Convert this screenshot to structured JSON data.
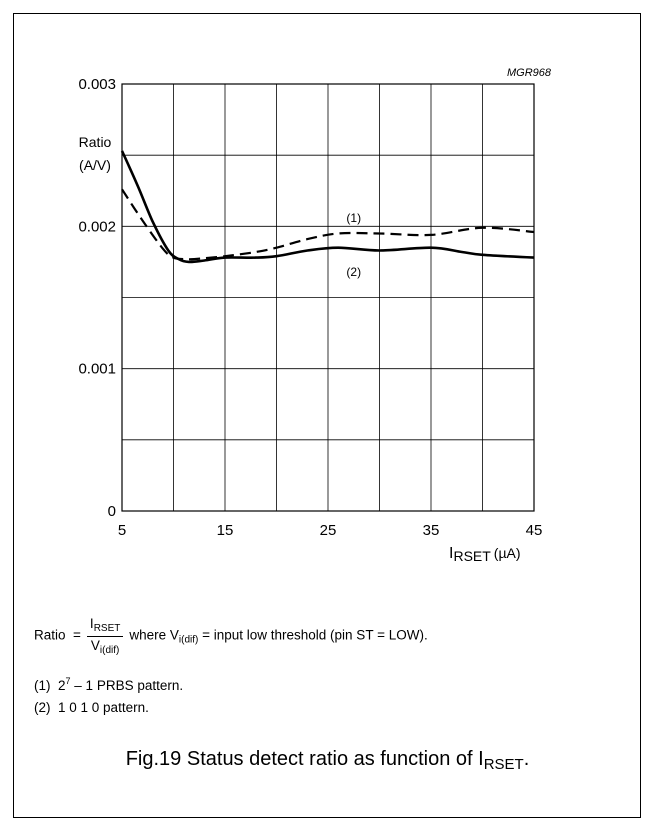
{
  "chart_data": {
    "type": "line",
    "code": "MGR968",
    "ylabel": [
      "Ratio",
      "(A/V)"
    ],
    "xlabel": {
      "main": "I",
      "sub": "RSET",
      "unit": "(µA)"
    },
    "xlim": [
      5,
      45
    ],
    "ylim": [
      0,
      0.003
    ],
    "x_ticks": [
      5,
      15,
      25,
      35,
      45
    ],
    "x_tick_labels": [
      "5",
      "15",
      "25",
      "35",
      "45"
    ],
    "y_ticks": [
      0,
      0.001,
      0.002,
      0.003
    ],
    "y_tick_labels": [
      "0",
      "0.001",
      "0.002",
      "0.003"
    ],
    "x_grid": [
      5,
      10,
      15,
      20,
      25,
      30,
      35,
      40,
      45
    ],
    "y_grid": [
      0,
      0.0005,
      0.001,
      0.0015,
      0.002,
      0.0025,
      0.003
    ],
    "series": [
      {
        "name": "(1)",
        "style": "dashed",
        "points": [
          [
            5,
            0.00226
          ],
          [
            7,
            0.00204
          ],
          [
            9,
            0.00184
          ],
          [
            10,
            0.00178
          ],
          [
            11,
            0.00177
          ],
          [
            12,
            0.00177
          ],
          [
            15,
            0.00179
          ],
          [
            18,
            0.00182
          ],
          [
            20,
            0.00185
          ],
          [
            23,
            0.00191
          ],
          [
            26,
            0.00195
          ],
          [
            30,
            0.00195
          ],
          [
            35,
            0.00194
          ],
          [
            40,
            0.00199
          ],
          [
            45,
            0.00196
          ]
        ],
        "label_at": [
          27.5,
          0.00206
        ]
      },
      {
        "name": "(2)",
        "style": "solid",
        "points": [
          [
            5,
            0.00253
          ],
          [
            6.5,
            0.00229
          ],
          [
            8,
            0.00203
          ],
          [
            9.5,
            0.00183
          ],
          [
            10.5,
            0.00177
          ],
          [
            11.5,
            0.00175
          ],
          [
            13,
            0.00176
          ],
          [
            15,
            0.00178
          ],
          [
            18,
            0.00178
          ],
          [
            20,
            0.00179
          ],
          [
            23,
            0.00183
          ],
          [
            26,
            0.00185
          ],
          [
            30,
            0.00183
          ],
          [
            35,
            0.00185
          ],
          [
            38,
            0.00182
          ],
          [
            40,
            0.0018
          ],
          [
            45,
            0.00178
          ]
        ],
        "label_at": [
          27.5,
          0.00168
        ]
      }
    ]
  },
  "formula": {
    "lhs": "Ratio",
    "eq": "=",
    "num_main": "I",
    "num_sub": "RSET",
    "den_main": "V",
    "den_sub": "i(dif)",
    "where_text": "where V",
    "where_sub": "i(dif)",
    "where_rest": " = input low threshold (pin ST = LOW)."
  },
  "notes": [
    {
      "label": "(1)",
      "base": "2",
      "sup": "7",
      "rest": " – 1 PRBS pattern."
    },
    {
      "label": "(2)",
      "text": "1 0 1 0 pattern."
    }
  ],
  "caption": {
    "main": "Fig.19  Status detect ratio as function of I",
    "sub": "RSET",
    "end": "."
  }
}
